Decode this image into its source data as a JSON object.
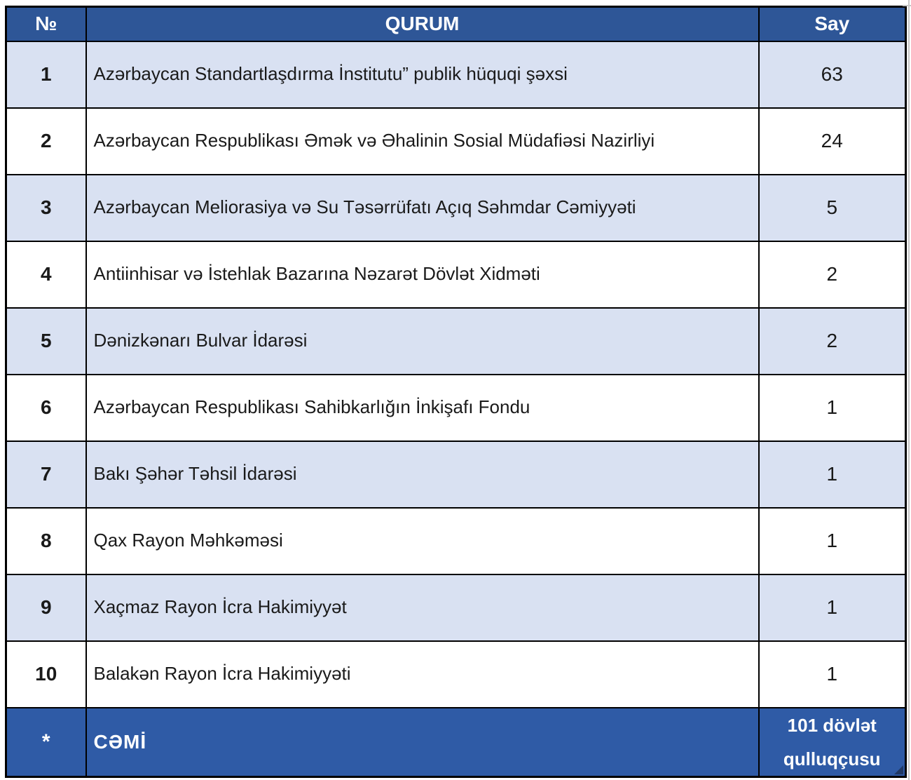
{
  "colors": {
    "header_bg": "#2E5697",
    "footer_bg": "#2F5BA6",
    "alt_row_bg": "#D9E1F2",
    "row_bg": "#FFFFFF",
    "border": "#000000",
    "header_text": "#FFFFFF",
    "body_text": "#1A1A1A",
    "corner_mark": "#1F3864"
  },
  "table": {
    "columns": [
      {
        "key": "no",
        "label": "№"
      },
      {
        "key": "qurum",
        "label": "QURUM"
      },
      {
        "key": "say",
        "label": "Say"
      }
    ],
    "rows": [
      {
        "no": "1",
        "qurum": "Azərbaycan Standartlaşdırma İnstitutu” publik hüquqi şəxsi",
        "say": "63"
      },
      {
        "no": "2",
        "qurum": "Azərbaycan Respublikası Əmək və Əhalinin Sosial Müdafiəsi Nazirliyi",
        "say": "24"
      },
      {
        "no": "3",
        "qurum": "Azərbaycan Meliorasiya və Su Təsərrüfatı Açıq Səhmdar Cəmiyyəti",
        "say": "5"
      },
      {
        "no": "4",
        "qurum": "Antiinhisar və İstehlak Bazarına Nəzarət Dövlət Xidməti",
        "say": "2"
      },
      {
        "no": "5",
        "qurum": "Dənizkənarı Bulvar İdarəsi",
        "say": "2"
      },
      {
        "no": "6",
        "qurum": "Azərbaycan Respublikası Sahibkarlığın İnkişafı Fondu",
        "say": "1"
      },
      {
        "no": "7",
        "qurum": "Bakı Şəhər Təhsil İdarəsi",
        "say": "1"
      },
      {
        "no": "8",
        "qurum": "Qax Rayon Məhkəməsi",
        "say": "1"
      },
      {
        "no": "9",
        "qurum": "Xaçmaz Rayon İcra Hakimiyyət",
        "say": "1"
      },
      {
        "no": "10",
        "qurum": "Balakən Rayon İcra Hakimiyyəti",
        "say": "1"
      }
    ],
    "footer": {
      "no": "*",
      "qurum": "CƏMİ",
      "say": "101 dövlət qulluqçusu"
    }
  }
}
